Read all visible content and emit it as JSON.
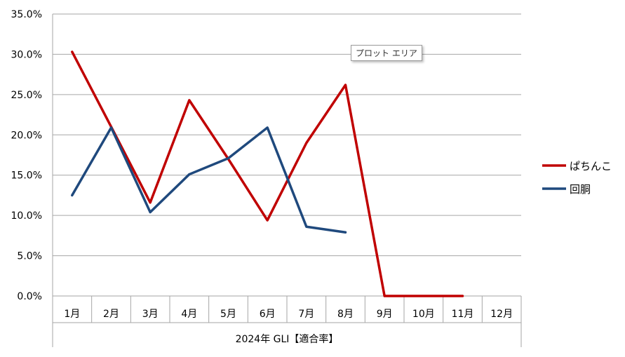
{
  "chart_data": {
    "type": "line",
    "categories": [
      "1月",
      "2月",
      "3月",
      "4月",
      "5月",
      "6月",
      "7月",
      "8月",
      "9月",
      "10月",
      "11月",
      "12月"
    ],
    "xlabel": "2024年 GLI【適合率】",
    "ylabel": "",
    "ylim": [
      0,
      35
    ],
    "yticks": [
      "0.0%",
      "5.0%",
      "10.0%",
      "15.0%",
      "20.0%",
      "25.0%",
      "30.0%",
      "35.0%"
    ],
    "grid": true,
    "legend": "right",
    "series": [
      {
        "name": "ぱちんこ",
        "color": "#c00000",
        "values": [
          30.3,
          21.0,
          11.6,
          24.3,
          17.0,
          9.4,
          19.0,
          26.2,
          0.0,
          0.0,
          0.0,
          null
        ]
      },
      {
        "name": "回胴",
        "color": "#1f497d",
        "values": [
          12.5,
          20.9,
          10.4,
          15.1,
          17.1,
          20.9,
          8.6,
          7.9,
          null,
          null,
          null,
          null
        ]
      }
    ]
  },
  "tooltip": "プロット エリア"
}
